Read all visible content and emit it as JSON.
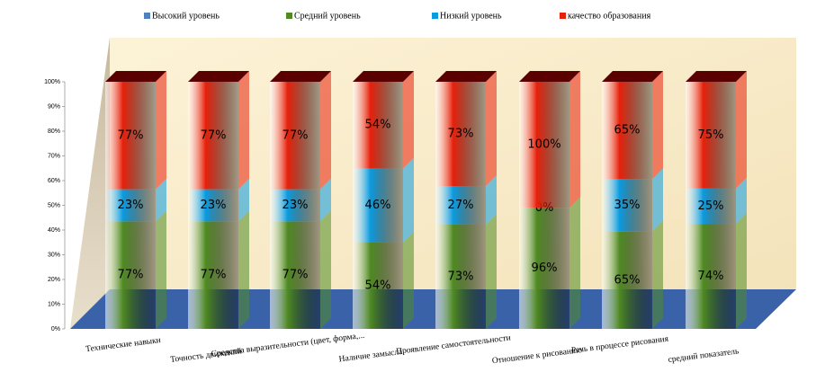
{
  "chart_data": {
    "type": "stacked_percent_bar",
    "categories": [
      "Технические навыки",
      "Точность движений",
      "Средства выразительности (цвет, форма,...",
      "Наличие замысла",
      "Проявление самостоятельности",
      "Отношение к рисованию",
      "Речь в процессе рисования",
      "средний показатель"
    ],
    "series": [
      {
        "name": "Высокий уровень",
        "color": "#4f81bd",
        "values": [
          0,
          0,
          0,
          0,
          0,
          0,
          0,
          0
        ]
      },
      {
        "name": "Средний уровень",
        "color": "#4f8a22",
        "values": [
          77,
          77,
          77,
          54,
          73,
          96,
          65,
          74
        ],
        "value_labels": [
          "77%",
          "77%",
          "77%",
          "54%",
          "73%",
          "96%",
          "65%",
          "74%"
        ]
      },
      {
        "name": "Низкий уровень",
        "color": "#0a9be0",
        "values": [
          23,
          23,
          23,
          46,
          27,
          0,
          35,
          25
        ],
        "value_labels": [
          "23%",
          "23%",
          "23%",
          "46%",
          "27%",
          "0%",
          "35%",
          "25%"
        ]
      },
      {
        "name": "качество образования",
        "color": "#e8200a",
        "values": [
          77,
          77,
          77,
          54,
          73,
          100,
          65,
          75
        ],
        "value_labels": [
          "77%",
          "77%",
          "77%",
          "54%",
          "73%",
          "100%",
          "65%",
          "75%"
        ]
      }
    ],
    "ylim": [
      0,
      100
    ],
    "yticks": [
      {
        "value": 0,
        "label": "0%"
      },
      {
        "value": 10,
        "label": "10%"
      },
      {
        "value": 20,
        "label": "20%"
      },
      {
        "value": 30,
        "label": "30%"
      },
      {
        "value": 40,
        "label": "40%"
      },
      {
        "value": 50,
        "label": "50%"
      },
      {
        "value": 60,
        "label": "60%"
      },
      {
        "value": 70,
        "label": "70%"
      },
      {
        "value": 80,
        "label": "80%"
      },
      {
        "value": 90,
        "label": "90%"
      },
      {
        "value": 100,
        "label": "100%"
      }
    ],
    "legend": "top"
  }
}
